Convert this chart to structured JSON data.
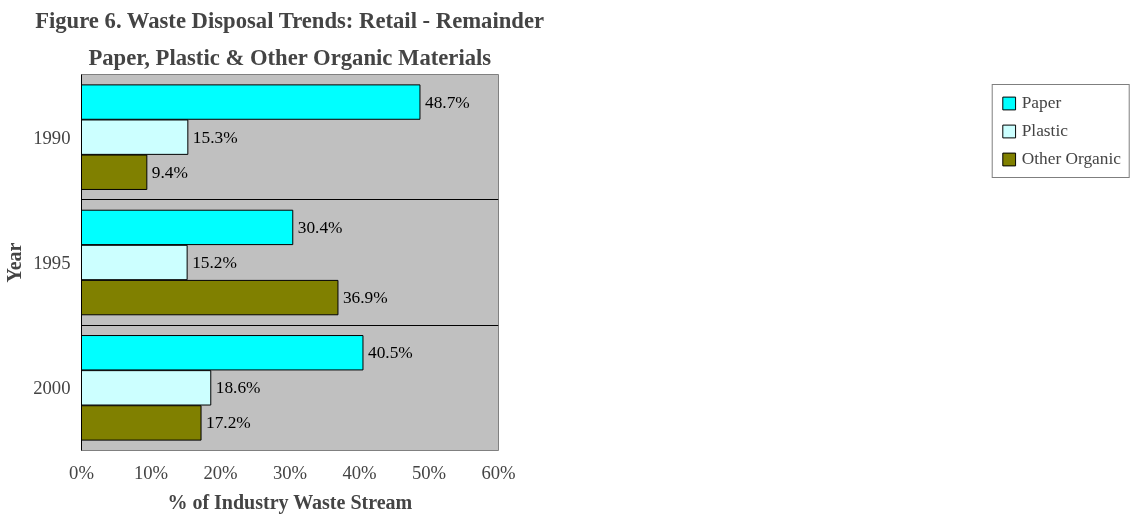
{
  "chart_data": {
    "type": "bar",
    "orientation": "horizontal",
    "title": "Figure 6. Waste Disposal Trends: Retail - Remainder",
    "subtitle": "Paper, Plastic & Other Organic Materials",
    "xlabel": "% of Industry Waste Stream",
    "ylabel": "Year",
    "categories": [
      "1990",
      "1995",
      "2000"
    ],
    "series": [
      {
        "name": "Paper",
        "color": "#00ffff",
        "values": [
          48.7,
          30.4,
          40.5
        ],
        "value_labels": [
          "48.7%",
          "30.4%",
          "40.5%"
        ]
      },
      {
        "name": "Plastic",
        "color": "#ccffff",
        "values": [
          15.3,
          15.2,
          18.6
        ],
        "value_labels": [
          "15.3%",
          "15.2%",
          "18.6%"
        ]
      },
      {
        "name": "Other Organic",
        "color": "#808000",
        "values": [
          9.4,
          36.9,
          17.2
        ],
        "value_labels": [
          "9.4%",
          "36.9%",
          "17.2%"
        ]
      }
    ],
    "xlim": [
      0,
      60
    ],
    "xticks": [
      {
        "value": 0,
        "label": "0%"
      },
      {
        "value": 10,
        "label": "10%"
      },
      {
        "value": 20,
        "label": "20%"
      },
      {
        "value": 30,
        "label": "30%"
      },
      {
        "value": 40,
        "label": "40%"
      },
      {
        "value": 50,
        "label": "50%"
      },
      {
        "value": 60,
        "label": "60%"
      }
    ],
    "grid": "y",
    "legend": "right"
  }
}
